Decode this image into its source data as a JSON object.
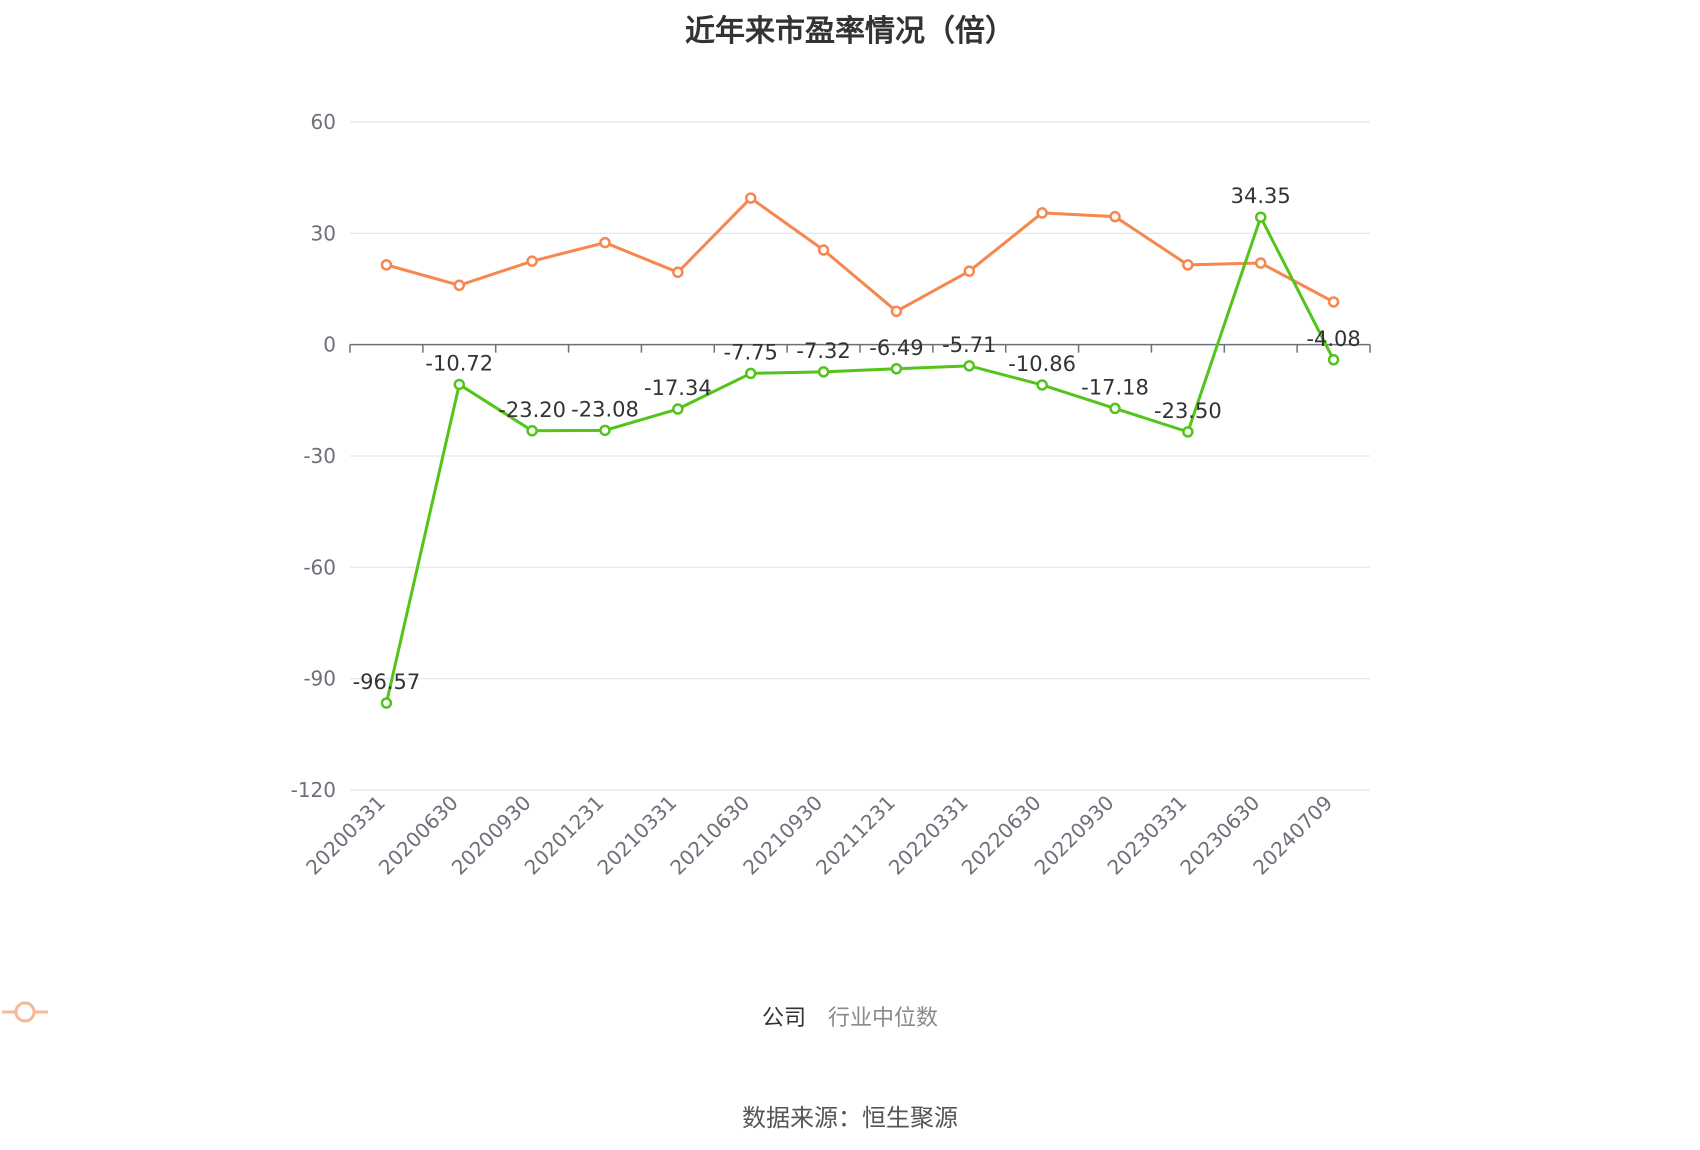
{
  "chart_data": {
    "type": "line",
    "title": "近年来市盈率情况（倍）",
    "categories": [
      "20200331",
      "20200630",
      "20200930",
      "20201231",
      "20210331",
      "20210630",
      "20210930",
      "20211231",
      "20220331",
      "20220630",
      "20220930",
      "20230331",
      "20230630",
      "20240709"
    ],
    "series": [
      {
        "name": "公司",
        "color": "#52c41a",
        "values": [
          -96.57,
          -10.72,
          -23.2,
          -23.08,
          -17.34,
          -7.75,
          -7.32,
          -6.49,
          -5.71,
          -10.86,
          -17.18,
          -23.5,
          34.35,
          -4.08
        ],
        "labels": [
          "-96.57",
          "-10.72",
          "-23.20",
          "-23.08",
          "-17.34",
          "-7.75",
          "-7.32",
          "-6.49",
          "-5.71",
          "-10.86",
          "-17.18",
          "-23.50",
          "34.35",
          "-4.08"
        ]
      },
      {
        "name": "行业中位数",
        "color": "#f5874f",
        "values": [
          21.5,
          16.0,
          22.5,
          27.5,
          19.5,
          39.5,
          25.5,
          9.0,
          19.8,
          35.5,
          34.5,
          21.5,
          22.0,
          11.5
        ]
      }
    ],
    "ylim": [
      -120,
      60
    ],
    "yticks": [
      "60",
      "30",
      "0",
      "-30",
      "-60",
      "-90",
      "-120"
    ],
    "grid": true,
    "legend_position": "bottom-center"
  },
  "legend": {
    "company": "公司",
    "industry": "行业中位数"
  },
  "source": "数据来源：恒生聚源"
}
